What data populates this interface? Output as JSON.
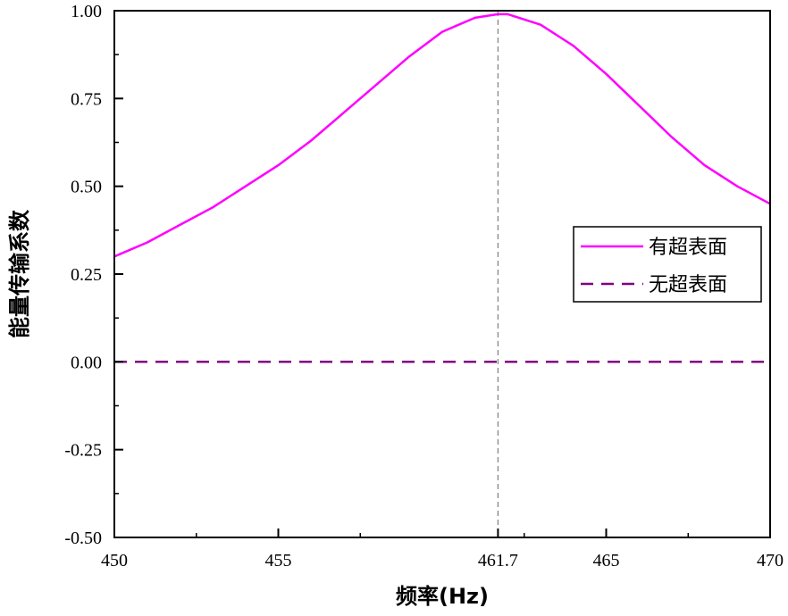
{
  "chart_data": {
    "type": "line",
    "xlabel": "频率(Hz)",
    "ylabel": "能量传输系数",
    "xlim": [
      450,
      470
    ],
    "ylim": [
      -0.5,
      1.0
    ],
    "x_ticks": [
      450,
      455,
      461.7,
      465,
      470
    ],
    "x_tick_labels": [
      "450",
      "455",
      "461.7",
      "465",
      "470"
    ],
    "y_ticks": [
      -0.5,
      -0.25,
      0.0,
      0.25,
      0.5,
      0.75,
      1.0
    ],
    "y_tick_labels": [
      "-0.50",
      "-0.25",
      "0.00",
      "0.25",
      "0.50",
      "0.75",
      "1.00"
    ],
    "reference_line_x": 461.7,
    "legend_position": "right",
    "series": [
      {
        "name": "有超表面",
        "color": "#ff00ff",
        "style": "solid",
        "x": [
          450,
          451,
          452,
          453,
          454,
          455,
          456,
          457,
          458,
          459,
          460,
          461,
          461.7,
          462,
          463,
          464,
          465,
          466,
          467,
          468,
          469,
          470
        ],
        "y": [
          0.3,
          0.34,
          0.39,
          0.44,
          0.5,
          0.56,
          0.63,
          0.71,
          0.79,
          0.87,
          0.94,
          0.98,
          0.99,
          0.99,
          0.96,
          0.9,
          0.82,
          0.73,
          0.64,
          0.56,
          0.5,
          0.45
        ]
      },
      {
        "name": "无超表面",
        "color": "#800080",
        "style": "dashed",
        "x": [
          450,
          470
        ],
        "y": [
          0.0,
          0.0
        ]
      }
    ]
  }
}
